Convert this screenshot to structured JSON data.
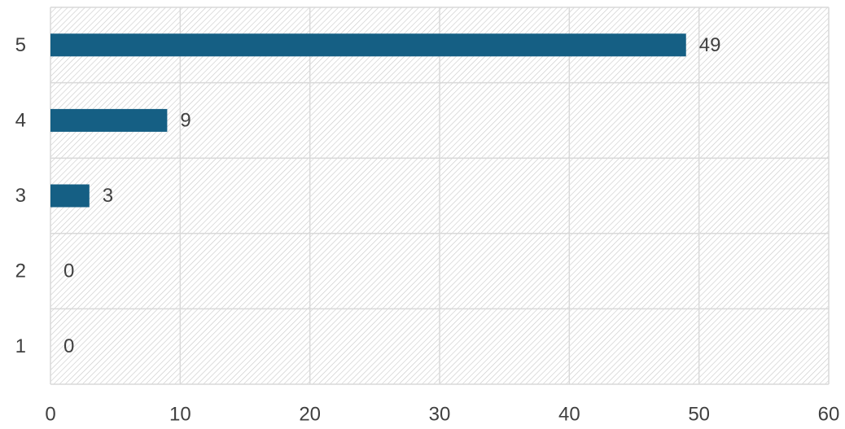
{
  "chart_data": {
    "type": "bar",
    "orientation": "horizontal",
    "categories": [
      "1",
      "2",
      "3",
      "4",
      "5"
    ],
    "values": [
      0,
      0,
      3,
      9,
      49
    ],
    "data_labels": [
      "0",
      "0",
      "3",
      "9",
      "49"
    ],
    "x_ticks": [
      "0",
      "10",
      "20",
      "30",
      "40",
      "50",
      "60"
    ],
    "xlim": [
      0,
      60
    ],
    "grid": true,
    "background": "hatched",
    "colors": {
      "bar": "#155F84",
      "grid": "#D9D9D9",
      "hatch": "#C8C8C8",
      "text": "#404040"
    }
  }
}
